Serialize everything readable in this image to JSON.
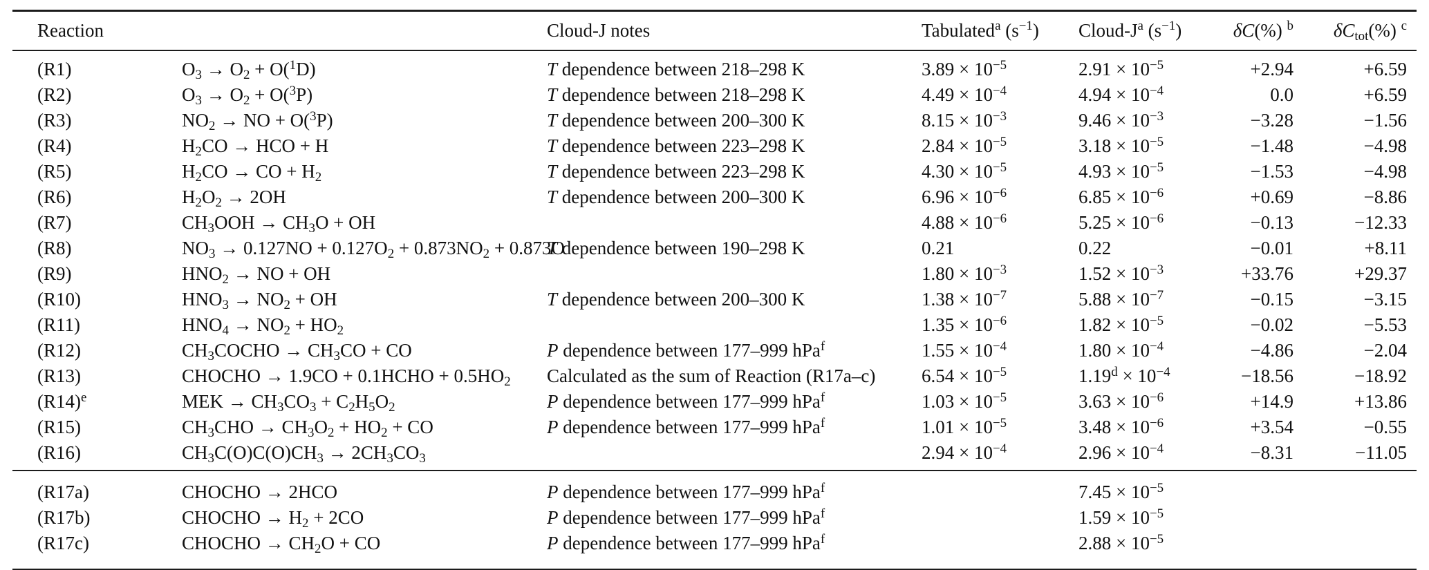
{
  "page": {
    "background": "#ffffff",
    "text_color": "#111111",
    "rule_color": "#1c1c1c"
  },
  "table": {
    "header": {
      "reaction": "Reaction",
      "notes": "Cloud-J notes",
      "tabulated": "Tabulated<sup>a</sup> (s<sup>−1</sup>)",
      "cloudj": "Cloud-J<sup>a</sup> (s<sup>−1</sup>)",
      "delta_c": "<i>δC</i>(%) <sup>b</sup>",
      "delta_c_tot": "<i>δC</i><sub>tot</sub>(%) <sup>c</sup>"
    },
    "rows": [
      {
        "id": "(R1)",
        "formula": "O<sub>3</sub> → O<sub>2</sub> + O(<sup>1</sup>D)",
        "note": "<i>T</i> dependence between 218–298 K",
        "tabulated": "3.89 × 10<sup>−5</sup>",
        "cloudj": "2.91 × 10<sup>−5</sup>",
        "delta_c": "+2.94",
        "delta_c_tot": "+6.59"
      },
      {
        "id": "(R2)",
        "formula": "O<sub>3</sub> → O<sub>2</sub> + O(<sup>3</sup>P)",
        "note": "<i>T</i> dependence between 218–298 K",
        "tabulated": "4.49 × 10<sup>−4</sup>",
        "cloudj": "4.94 × 10<sup>−4</sup>",
        "delta_c": "0.0",
        "delta_c_tot": "+6.59"
      },
      {
        "id": "(R3)",
        "formula": "NO<sub>2</sub> → NO + O(<sup>3</sup>P)",
        "note": "<i>T</i> dependence between 200–300 K",
        "tabulated": "8.15 × 10<sup>−3</sup>",
        "cloudj": "9.46 × 10<sup>−3</sup>",
        "delta_c": "−3.28",
        "delta_c_tot": "−1.56"
      },
      {
        "id": "(R4)",
        "formula": "H<sub>2</sub>CO → HCO + H",
        "note": "<i>T</i> dependence between 223–298 K",
        "tabulated": "2.84 × 10<sup>−5</sup>",
        "cloudj": "3.18 × 10<sup>−5</sup>",
        "delta_c": "−1.48",
        "delta_c_tot": "−4.98"
      },
      {
        "id": "(R5)",
        "formula": "H<sub>2</sub>CO → CO + H<sub>2</sub>",
        "note": "<i>T</i> dependence between 223–298 K",
        "tabulated": "4.30 × 10<sup>−5</sup>",
        "cloudj": "4.93 × 10<sup>−5</sup>",
        "delta_c": "−1.53",
        "delta_c_tot": "−4.98"
      },
      {
        "id": "(R6)",
        "formula": "H<sub>2</sub>O<sub>2</sub> → 2OH",
        "note": "<i>T</i> dependence between 200–300 K",
        "tabulated": "6.96 × 10<sup>−6</sup>",
        "cloudj": "6.85 × 10<sup>−6</sup>",
        "delta_c": "+0.69",
        "delta_c_tot": "−8.86"
      },
      {
        "id": "(R7)",
        "formula": "CH<sub>3</sub>OOH → CH<sub>3</sub>O + OH",
        "note": "",
        "tabulated": "4.88 × 10<sup>−6</sup>",
        "cloudj": "5.25 × 10<sup>−6</sup>",
        "delta_c": "−0.13",
        "delta_c_tot": "−12.33"
      },
      {
        "id": "(R8)",
        "formula": "NO<sub>3</sub> → 0.127NO + 0.127O<sub>2</sub> + 0.873NO<sub>2</sub> + 0.873O",
        "note": "<i>T</i> dependence between 190–298 K",
        "tabulated": "0.21",
        "cloudj": "0.22",
        "delta_c": "−0.01",
        "delta_c_tot": "+8.11"
      },
      {
        "id": "(R9)",
        "formula": "HNO<sub>2</sub> → NO + OH",
        "note": "",
        "tabulated": "1.80 × 10<sup>−3</sup>",
        "cloudj": "1.52 × 10<sup>−3</sup>",
        "delta_c": "+33.76",
        "delta_c_tot": "+29.37"
      },
      {
        "id": "(R10)",
        "formula": "HNO<sub>3</sub> → NO<sub>2</sub> + OH",
        "note": "<i>T</i> dependence between 200–300 K",
        "tabulated": "1.38 × 10<sup>−7</sup>",
        "cloudj": "5.88 × 10<sup>−7</sup>",
        "delta_c": "−0.15",
        "delta_c_tot": "−3.15"
      },
      {
        "id": "(R11)",
        "formula": "HNO<sub>4</sub> → NO<sub>2</sub> + HO<sub>2</sub>",
        "note": "",
        "tabulated": "1.35 × 10<sup>−6</sup>",
        "cloudj": "1.82 × 10<sup>−5</sup>",
        "delta_c": "−0.02",
        "delta_c_tot": "−5.53"
      },
      {
        "id": "(R12)",
        "formula": "CH<sub>3</sub>COCHO → CH<sub>3</sub>CO + CO",
        "note": "<i>P</i> dependence between 177–999 hPa<sup>f</sup>",
        "tabulated": "1.55 × 10<sup>−4</sup>",
        "cloudj": "1.80 × 10<sup>−4</sup>",
        "delta_c": "−4.86",
        "delta_c_tot": "−2.04"
      },
      {
        "id": "(R13)",
        "formula": "CHOCHO → 1.9CO + 0.1HCHO + 0.5HO<sub>2</sub>",
        "note": "Calculated as the sum of Reaction (R17a–c)",
        "tabulated": "6.54 × 10<sup>−5</sup>",
        "cloudj": "1.19<sup>d</sup> × 10<sup>−4</sup>",
        "delta_c": "−18.56",
        "delta_c_tot": "−18.92"
      },
      {
        "id": "(R14)<sup>e</sup>",
        "formula": "MEK → CH<sub>3</sub>CO<sub>3</sub> + C<sub>2</sub>H<sub>5</sub>O<sub>2</sub>",
        "note": "<i>P</i> dependence between 177–999 hPa<sup>f</sup>",
        "tabulated": "1.03 × 10<sup>−5</sup>",
        "cloudj": "3.63 × 10<sup>−6</sup>",
        "delta_c": "+14.9",
        "delta_c_tot": "+13.86"
      },
      {
        "id": "(R15)",
        "formula": "CH<sub>3</sub>CHO → CH<sub>3</sub>O<sub>2</sub> + HO<sub>2</sub> + CO",
        "note": "<i>P</i> dependence between 177–999 hPa<sup>f</sup>",
        "tabulated": "1.01 × 10<sup>−5</sup>",
        "cloudj": "3.48 × 10<sup>−6</sup>",
        "delta_c": "+3.54",
        "delta_c_tot": "−0.55"
      },
      {
        "id": "(R16)",
        "formula": "CH<sub>3</sub>C(O)C(O)CH<sub>3</sub> → 2CH<sub>3</sub>CO<sub>3</sub>",
        "note": "",
        "tabulated": "2.94 × 10<sup>−4</sup>",
        "cloudj": "2.96 × 10<sup>−4</sup>",
        "delta_c": "−8.31",
        "delta_c_tot": "−11.05"
      }
    ],
    "rows_r17": [
      {
        "id": "(R17a)",
        "formula": "CHOCHO → 2HCO",
        "note": "<i>P</i> dependence between 177–999 hPa<sup>f</sup>",
        "tabulated": "",
        "cloudj": "7.45 × 10<sup>−5</sup>",
        "delta_c": "",
        "delta_c_tot": ""
      },
      {
        "id": "(R17b)",
        "formula": "CHOCHO → H<sub>2</sub> + 2CO",
        "note": "<i>P</i> dependence between 177–999 hPa<sup>f</sup>",
        "tabulated": "",
        "cloudj": "1.59 × 10<sup>−5</sup>",
        "delta_c": "",
        "delta_c_tot": ""
      },
      {
        "id": "(R17c)",
        "formula": "CHOCHO → CH<sub>2</sub>O + CO",
        "note": "<i>P</i> dependence between 177–999 hPa<sup>f</sup>",
        "tabulated": "",
        "cloudj": "2.88 × 10<sup>−5</sup>",
        "delta_c": "",
        "delta_c_tot": ""
      }
    ]
  }
}
